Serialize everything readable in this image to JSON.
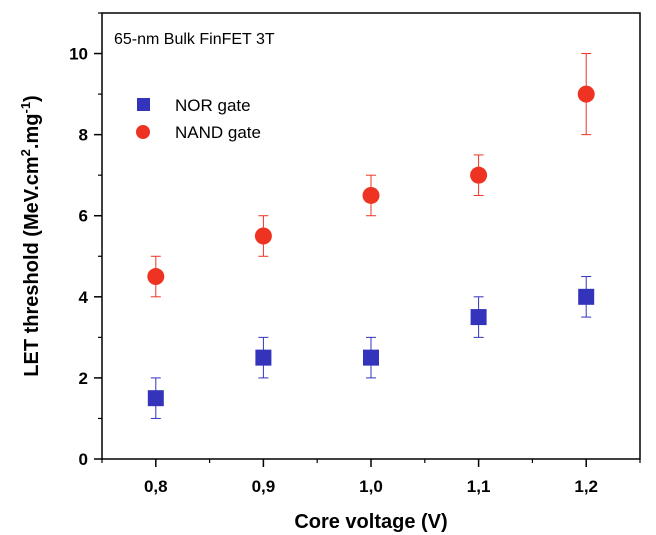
{
  "chart_data": {
    "type": "scatter",
    "annotation": "65-nm Bulk FinFET 3T",
    "xlabel": "Core voltage (V)",
    "ylabel_main": "LET threshold (MeV.cm",
    "ylabel_sup1": "2",
    "ylabel_mid": ".mg",
    "ylabel_sup2": "-1",
    "ylabel_end": ")",
    "xlim": [
      0.75,
      1.25
    ],
    "ylim": [
      0,
      11
    ],
    "xticks": [
      "0,8",
      "0,9",
      "1,0",
      "1,1",
      "1,2"
    ],
    "xtick_values": [
      0.8,
      0.9,
      1.0,
      1.1,
      1.2
    ],
    "yticks": [
      "0",
      "2",
      "4",
      "6",
      "8",
      "10"
    ],
    "ytick_values": [
      0,
      2,
      4,
      6,
      8,
      10
    ],
    "legend_position": "upper-left",
    "series": [
      {
        "name": "NOR gate",
        "marker": "square",
        "color": "#3333bb",
        "x": [
          0.8,
          0.9,
          1.0,
          1.1,
          1.2
        ],
        "y": [
          1.5,
          2.5,
          2.5,
          3.5,
          4.0
        ],
        "err": [
          0.5,
          0.5,
          0.5,
          0.5,
          0.5
        ]
      },
      {
        "name": "NAND gate",
        "marker": "circle",
        "color": "#ee3322",
        "x": [
          0.8,
          0.9,
          1.0,
          1.1,
          1.2
        ],
        "y": [
          4.5,
          5.5,
          6.5,
          7.0,
          9.0
        ],
        "err": [
          0.5,
          0.5,
          0.5,
          0.5,
          1.0
        ]
      }
    ]
  }
}
